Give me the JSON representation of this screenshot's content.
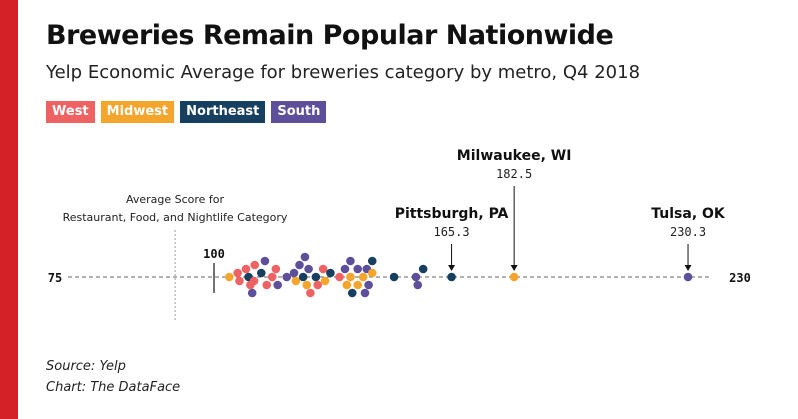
{
  "chart_data": {
    "type": "scatter",
    "title": "Breweries Remain Popular Nationwide",
    "subtitle": "Yelp Economic Average for breweries category by metro, Q4 2018",
    "legend": [
      {
        "label": "West",
        "color": "#ef6264"
      },
      {
        "label": "Midwest",
        "color": "#f5a52c"
      },
      {
        "label": "Northeast",
        "color": "#173f5f"
      },
      {
        "label": "South",
        "color": "#5d4f9a"
      }
    ],
    "axis": {
      "min_label": "75",
      "max_label": "230",
      "tick_label": "100",
      "tick_value": 100,
      "xlim": [
        75,
        230
      ]
    },
    "reference": {
      "label_line1": "Average Score for",
      "label_line2": "Restaurant, Food, and Nightlife Category",
      "value": 89.3
    },
    "annotations": [
      {
        "name": "Pittsburgh, PA",
        "value": 165.3,
        "value_label": "165.3",
        "region": "Northeast"
      },
      {
        "name": "Milwaukee, WI",
        "value": 182.5,
        "value_label": "182.5",
        "region": "Midwest"
      },
      {
        "name": "Tulsa, OK",
        "value": 230.3,
        "value_label": "230.3",
        "region": "South"
      }
    ],
    "points": [
      {
        "value": 104.2,
        "row": 0,
        "region": "Midwest"
      },
      {
        "value": 106.5,
        "row": -0.5,
        "region": "West"
      },
      {
        "value": 107.0,
        "row": 0.5,
        "region": "West"
      },
      {
        "value": 108.8,
        "row": -1,
        "region": "West"
      },
      {
        "value": 109.5,
        "row": 0,
        "region": "Northeast"
      },
      {
        "value": 110.0,
        "row": 1,
        "region": "West"
      },
      {
        "value": 111.2,
        "row": -1.5,
        "region": "West"
      },
      {
        "value": 111.0,
        "row": 0.5,
        "region": "West"
      },
      {
        "value": 110.5,
        "row": 2,
        "region": "South"
      },
      {
        "value": 113.0,
        "row": -0.5,
        "region": "Northeast"
      },
      {
        "value": 114.0,
        "row": -2,
        "region": "South"
      },
      {
        "value": 114.5,
        "row": 1,
        "region": "West"
      },
      {
        "value": 116.0,
        "row": 0,
        "region": "West"
      },
      {
        "value": 117.0,
        "row": -1,
        "region": "West"
      },
      {
        "value": 117.5,
        "row": 1,
        "region": "South"
      },
      {
        "value": 120.0,
        "row": 0,
        "region": "South"
      },
      {
        "value": 122.0,
        "row": -0.5,
        "region": "South"
      },
      {
        "value": 122.5,
        "row": 0.5,
        "region": "Midwest"
      },
      {
        "value": 123.5,
        "row": -1.5,
        "region": "South"
      },
      {
        "value": 124.5,
        "row": 0,
        "region": "Northeast"
      },
      {
        "value": 125.0,
        "row": -2.5,
        "region": "South"
      },
      {
        "value": 125.5,
        "row": 1,
        "region": "Midwest"
      },
      {
        "value": 126.0,
        "row": -1,
        "region": "South"
      },
      {
        "value": 126.5,
        "row": 2,
        "region": "West"
      },
      {
        "value": 128.0,
        "row": 0,
        "region": "Northeast"
      },
      {
        "value": 128.5,
        "row": 1,
        "region": "West"
      },
      {
        "value": 130.0,
        "row": -1,
        "region": "West"
      },
      {
        "value": 130.5,
        "row": 0.5,
        "region": "Midwest"
      },
      {
        "value": 132.0,
        "row": -0.5,
        "region": "Northeast"
      },
      {
        "value": 134.5,
        "row": 0,
        "region": "West"
      },
      {
        "value": 136.0,
        "row": -1,
        "region": "South"
      },
      {
        "value": 136.5,
        "row": 1,
        "region": "Midwest"
      },
      {
        "value": 137.5,
        "row": -2,
        "region": "South"
      },
      {
        "value": 137.5,
        "row": 0,
        "region": "Midwest"
      },
      {
        "value": 138.0,
        "row": 2,
        "region": "Northeast"
      },
      {
        "value": 139.5,
        "row": -1,
        "region": "South"
      },
      {
        "value": 139.5,
        "row": 1,
        "region": "Midwest"
      },
      {
        "value": 141.0,
        "row": 0,
        "region": "Midwest"
      },
      {
        "value": 141.5,
        "row": 2,
        "region": "South"
      },
      {
        "value": 142.0,
        "row": -1,
        "region": "South"
      },
      {
        "value": 142.5,
        "row": 1,
        "region": "South"
      },
      {
        "value": 143.5,
        "row": -2,
        "region": "Northeast"
      },
      {
        "value": 143.5,
        "row": -0.5,
        "region": "Midwest"
      },
      {
        "value": 149.5,
        "row": 0,
        "region": "Northeast"
      },
      {
        "value": 155.5,
        "row": 0,
        "region": "South"
      },
      {
        "value": 156.0,
        "row": 1,
        "region": "South"
      },
      {
        "value": 157.5,
        "row": -1,
        "region": "Northeast"
      },
      {
        "value": 165.3,
        "row": 0,
        "region": "Northeast"
      },
      {
        "value": 182.5,
        "row": 0,
        "region": "Midwest"
      },
      {
        "value": 230.3,
        "row": 0,
        "region": "South"
      }
    ]
  },
  "footer": {
    "source": "Source: Yelp",
    "credit": "Chart: The DataFace"
  }
}
